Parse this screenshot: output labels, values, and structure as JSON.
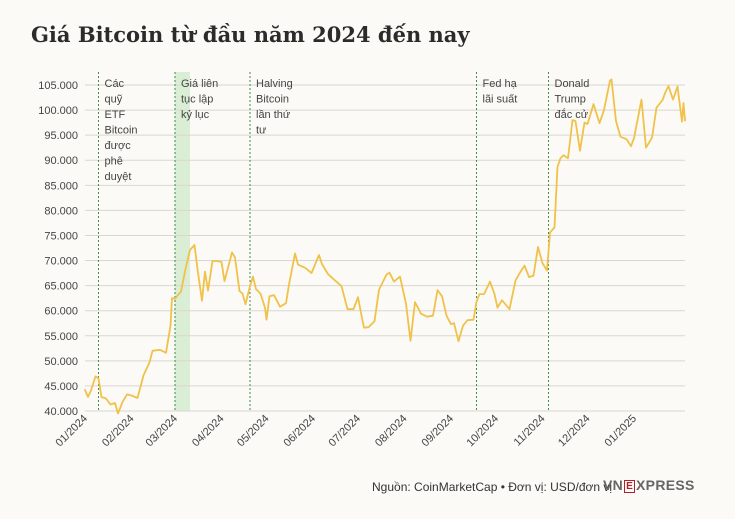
{
  "title": "Giá Bitcoin từ đầu năm 2024 đến nay",
  "footer": {
    "source": "Nguồn: CoinMarketCap • Đơn vị: USD/đơn vị",
    "logo_vn": "VN",
    "logo_e": "E",
    "logo_rest": "XPRESS"
  },
  "colors": {
    "line": "#f0c24a",
    "grid": "#dad7cf",
    "event_line": "#3f8f45",
    "highlight_band": "#cfe8c9",
    "background": "#fbfaf6"
  },
  "chart_data": {
    "type": "line",
    "title": "Giá Bitcoin từ đầu năm 2024 đến nay",
    "xlabel": "",
    "ylabel": "",
    "ylim": [
      40000,
      106000
    ],
    "x_range": [
      "2024-01-01",
      "2025-02-04"
    ],
    "grid": true,
    "y_ticks": [
      40000,
      45000,
      50000,
      55000,
      60000,
      65000,
      70000,
      75000,
      80000,
      85000,
      90000,
      95000,
      100000,
      105000
    ],
    "y_tick_labels": [
      "40.000",
      "45.000",
      "50.000",
      "55.000",
      "60.000",
      "65.000",
      "70.000",
      "75.000",
      "80.000",
      "85.000",
      "90.000",
      "95.000",
      "100.000",
      "105.000"
    ],
    "x_ticks": [
      {
        "date": "2024-01-01",
        "label": "01/2024"
      },
      {
        "date": "2024-02-01",
        "label": "02/2024"
      },
      {
        "date": "2024-03-01",
        "label": "03/2024"
      },
      {
        "date": "2024-04-01",
        "label": "04/2024"
      },
      {
        "date": "2024-05-01",
        "label": "05/2024"
      },
      {
        "date": "2024-06-01",
        "label": "06/2024"
      },
      {
        "date": "2024-07-01",
        "label": "07/2024"
      },
      {
        "date": "2024-08-01",
        "label": "08/2024"
      },
      {
        "date": "2024-09-01",
        "label": "09/2024"
      },
      {
        "date": "2024-10-01",
        "label": "10/2024"
      },
      {
        "date": "2024-11-01",
        "label": "11/2024"
      },
      {
        "date": "2024-12-01",
        "label": "12/2024"
      },
      {
        "date": "2025-01-01",
        "label": "01/2025"
      }
    ],
    "highlight_band": {
      "from": "2024-03-01",
      "to": "2024-03-11"
    },
    "events": [
      {
        "date": "2024-01-10",
        "label": [
          "Các",
          "quỹ",
          "ETF",
          "Bitcoin",
          "được",
          "phê",
          "duyệt"
        ]
      },
      {
        "date": "2024-03-01",
        "label": [
          "Giá liên",
          "tục lập",
          "kỷ lục"
        ]
      },
      {
        "date": "2024-04-20",
        "label": [
          "Halving",
          "Bitcoin",
          "lần thứ",
          "tư"
        ]
      },
      {
        "date": "2024-09-18",
        "label": [
          "Fed hạ",
          "lãi suất"
        ]
      },
      {
        "date": "2024-11-05",
        "label": [
          "Donald",
          "Trump",
          "đắc cử"
        ]
      }
    ],
    "series": [
      {
        "values": [
          [
            "2024-01-01",
            44200
          ],
          [
            "2024-01-03",
            42800
          ],
          [
            "2024-01-05",
            44100
          ],
          [
            "2024-01-08",
            46900
          ],
          [
            "2024-01-10",
            46500
          ],
          [
            "2024-01-12",
            42800
          ],
          [
            "2024-01-15",
            42500
          ],
          [
            "2024-01-18",
            41300
          ],
          [
            "2024-01-21",
            41600
          ],
          [
            "2024-01-23",
            39500
          ],
          [
            "2024-01-26",
            41800
          ],
          [
            "2024-01-29",
            43300
          ],
          [
            "2024-02-01",
            43100
          ],
          [
            "2024-02-05",
            42600
          ],
          [
            "2024-02-09",
            47100
          ],
          [
            "2024-02-13",
            49700
          ],
          [
            "2024-02-15",
            52000
          ],
          [
            "2024-02-20",
            52200
          ],
          [
            "2024-02-24",
            51600
          ],
          [
            "2024-02-27",
            57000
          ],
          [
            "2024-02-28",
            62500
          ],
          [
            "2024-03-01",
            62400
          ],
          [
            "2024-03-03",
            63100
          ],
          [
            "2024-03-05",
            63800
          ],
          [
            "2024-03-08",
            68300
          ],
          [
            "2024-03-11",
            72100
          ],
          [
            "2024-03-14",
            73100
          ],
          [
            "2024-03-16",
            68300
          ],
          [
            "2024-03-19",
            62000
          ],
          [
            "2024-03-21",
            67800
          ],
          [
            "2024-03-23",
            64000
          ],
          [
            "2024-03-26",
            69900
          ],
          [
            "2024-03-29",
            69900
          ],
          [
            "2024-04-01",
            69700
          ],
          [
            "2024-04-03",
            65900
          ],
          [
            "2024-04-08",
            71600
          ],
          [
            "2024-04-10",
            70600
          ],
          [
            "2024-04-13",
            63900
          ],
          [
            "2024-04-15",
            63400
          ],
          [
            "2024-04-17",
            61300
          ],
          [
            "2024-04-20",
            64900
          ],
          [
            "2024-04-22",
            66800
          ],
          [
            "2024-04-24",
            64300
          ],
          [
            "2024-04-27",
            63400
          ],
          [
            "2024-04-30",
            60600
          ],
          [
            "2024-05-01",
            58200
          ],
          [
            "2024-05-03",
            62900
          ],
          [
            "2024-05-06",
            63100
          ],
          [
            "2024-05-10",
            60800
          ],
          [
            "2024-05-14",
            61500
          ],
          [
            "2024-05-16",
            65200
          ],
          [
            "2024-05-20",
            71400
          ],
          [
            "2024-05-22",
            69200
          ],
          [
            "2024-05-27",
            68500
          ],
          [
            "2024-05-31",
            67500
          ],
          [
            "2024-06-05",
            71100
          ],
          [
            "2024-06-07",
            69300
          ],
          [
            "2024-06-11",
            67300
          ],
          [
            "2024-06-15",
            66200
          ],
          [
            "2024-06-20",
            64900
          ],
          [
            "2024-06-24",
            60300
          ],
          [
            "2024-06-28",
            60300
          ],
          [
            "2024-07-01",
            62700
          ],
          [
            "2024-07-04",
            58000
          ],
          [
            "2024-07-05",
            56600
          ],
          [
            "2024-07-08",
            56700
          ],
          [
            "2024-07-12",
            57900
          ],
          [
            "2024-07-15",
            64200
          ],
          [
            "2024-07-20",
            67200
          ],
          [
            "2024-07-22",
            67600
          ],
          [
            "2024-07-25",
            65800
          ],
          [
            "2024-07-29",
            66800
          ],
          [
            "2024-08-02",
            61400
          ],
          [
            "2024-08-05",
            54000
          ],
          [
            "2024-08-08",
            61700
          ],
          [
            "2024-08-12",
            59400
          ],
          [
            "2024-08-16",
            58800
          ],
          [
            "2024-08-20",
            59000
          ],
          [
            "2024-08-23",
            64100
          ],
          [
            "2024-08-26",
            62900
          ],
          [
            "2024-08-29",
            59000
          ],
          [
            "2024-09-01",
            57300
          ],
          [
            "2024-09-03",
            57500
          ],
          [
            "2024-09-06",
            53900
          ],
          [
            "2024-09-09",
            57000
          ],
          [
            "2024-09-12",
            58100
          ],
          [
            "2024-09-16",
            58200
          ],
          [
            "2024-09-18",
            61800
          ],
          [
            "2024-09-20",
            63300
          ],
          [
            "2024-09-23",
            63300
          ],
          [
            "2024-09-27",
            65800
          ],
          [
            "2024-09-30",
            63300
          ],
          [
            "2024-10-02",
            60600
          ],
          [
            "2024-10-05",
            62100
          ],
          [
            "2024-10-10",
            60300
          ],
          [
            "2024-10-14",
            66000
          ],
          [
            "2024-10-17",
            67600
          ],
          [
            "2024-10-20",
            69000
          ],
          [
            "2024-10-23",
            66700
          ],
          [
            "2024-10-26",
            67000
          ],
          [
            "2024-10-29",
            72700
          ],
          [
            "2024-11-01",
            69500
          ],
          [
            "2024-11-04",
            68000
          ],
          [
            "2024-11-06",
            75600
          ],
          [
            "2024-11-09",
            76600
          ],
          [
            "2024-11-11",
            88700
          ],
          [
            "2024-11-13",
            90400
          ],
          [
            "2024-11-15",
            91000
          ],
          [
            "2024-11-18",
            90400
          ],
          [
            "2024-11-21",
            98000
          ],
          [
            "2024-11-23",
            97800
          ],
          [
            "2024-11-26",
            91900
          ],
          [
            "2024-11-29",
            97500
          ],
          [
            "2024-12-01",
            97200
          ],
          [
            "2024-12-05",
            101200
          ],
          [
            "2024-12-09",
            97400
          ],
          [
            "2024-12-12",
            100000
          ],
          [
            "2024-12-16",
            105900
          ],
          [
            "2024-12-17",
            106100
          ],
          [
            "2024-12-20",
            97800
          ],
          [
            "2024-12-23",
            94700
          ],
          [
            "2024-12-27",
            94200
          ],
          [
            "2024-12-30",
            92800
          ],
          [
            "2025-01-01",
            94400
          ],
          [
            "2025-01-06",
            102100
          ],
          [
            "2025-01-09",
            92500
          ],
          [
            "2025-01-13",
            94500
          ],
          [
            "2025-01-16",
            100500
          ],
          [
            "2025-01-20",
            102000
          ],
          [
            "2025-01-22",
            103600
          ],
          [
            "2025-01-24",
            104800
          ],
          [
            "2025-01-27",
            102100
          ],
          [
            "2025-01-30",
            104700
          ],
          [
            "2025-02-02",
            97700
          ],
          [
            "2025-02-03",
            101400
          ],
          [
            "2025-02-04",
            97900
          ]
        ]
      }
    ]
  }
}
